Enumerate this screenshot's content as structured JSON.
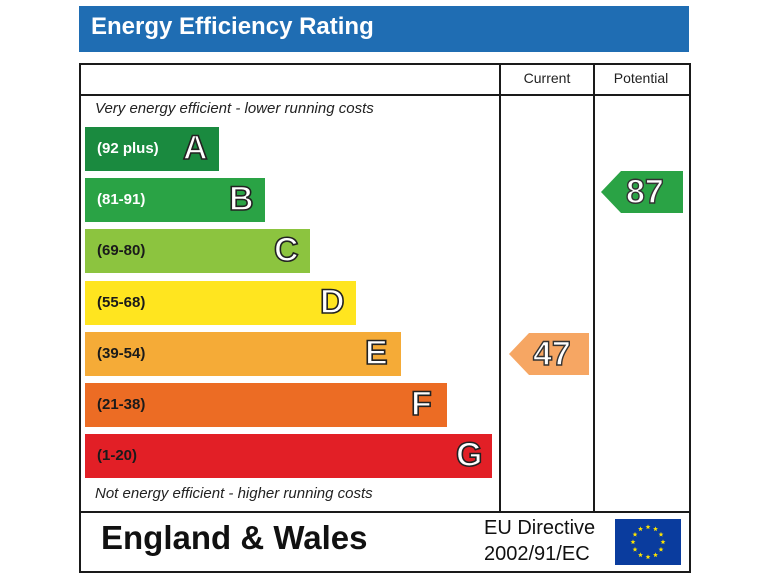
{
  "title": "Energy Efficiency Rating",
  "columns": {
    "current": "Current",
    "potential": "Potential"
  },
  "notes": {
    "top": "Very energy efficient - lower running costs",
    "bottom": "Not energy efficient - higher running costs"
  },
  "chart_data": {
    "type": "bar",
    "title": "Energy Efficiency Rating",
    "categories": [
      "A",
      "B",
      "C",
      "D",
      "E",
      "F",
      "G"
    ],
    "bands": [
      {
        "letter": "A",
        "range": "(92 plus)",
        "color": "#1a8a3f",
        "range_color": "#ffffff"
      },
      {
        "letter": "B",
        "range": "(81-91)",
        "color": "#2aa345",
        "range_color": "#ffffff"
      },
      {
        "letter": "C",
        "range": "(69-80)",
        "color": "#8cc43f",
        "range_color": "#1a1a1a"
      },
      {
        "letter": "D",
        "range": "(55-68)",
        "color": "#ffe51f",
        "range_color": "#1a1a1a"
      },
      {
        "letter": "E",
        "range": "(39-54)",
        "color": "#f5ab37",
        "range_color": "#1a1a1a"
      },
      {
        "letter": "F",
        "range": "(21-38)",
        "color": "#ec6c24",
        "range_color": "#1a1a1a"
      },
      {
        "letter": "G",
        "range": "(1-20)",
        "color": "#e21f26",
        "range_color": "#1a1a1a"
      }
    ],
    "current": {
      "value": 47,
      "band": "E",
      "color": "#f6a663"
    },
    "potential": {
      "value": 87,
      "band": "B",
      "color": "#2aa345"
    }
  },
  "footer": {
    "region": "England & Wales",
    "directive_line1": "EU Directive",
    "directive_line2": "2002/91/EC",
    "flag_color": "#0a3c9e",
    "star_color": "#ffe500"
  }
}
